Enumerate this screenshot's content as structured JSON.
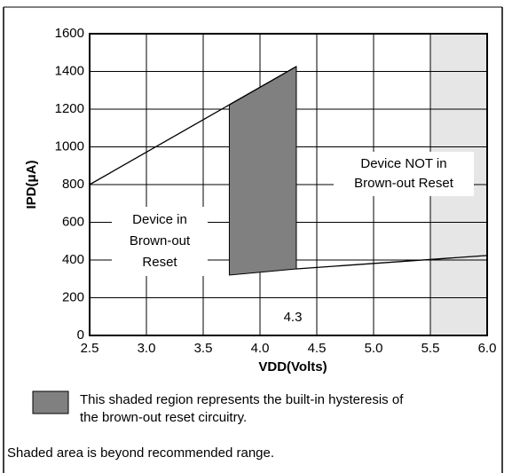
{
  "chart_data": {
    "type": "line",
    "xlabel": "VDD(Volts)",
    "ylabel": "IPD(μA)",
    "xlim": [
      2.5,
      6.0
    ],
    "ylim": [
      0,
      1600
    ],
    "xticks": [
      2.5,
      {
        "value": 3,
        "label": "3.0"
      },
      3.5,
      {
        "value": 4,
        "label": "4.0"
      },
      4.5,
      {
        "value": 5,
        "label": "5.0"
      },
      5.5,
      {
        "value": 6,
        "label": "6.0"
      }
    ],
    "yticks": [
      0,
      200,
      400,
      600,
      800,
      1000,
      1200,
      1400,
      1600
    ],
    "grid": true,
    "series": [
      {
        "color": "#000000",
        "x": [
          2.5,
          4.32
        ],
        "values": [
          800,
          1426
        ]
      },
      {
        "color": "#000000",
        "x": [
          4.32,
          6.0
        ],
        "values": [
          353,
          424
        ]
      }
    ],
    "hysteresis_region": {
      "color": "#808080",
      "x": [
        3.73,
        3.73,
        4.32,
        4.32
      ],
      "values": [
        320,
        1224,
        1426,
        353
      ]
    },
    "out_of_range_region": {
      "color": "#e6e6e6",
      "x": [
        5.5,
        6.0
      ]
    },
    "annotations": {
      "brown_out": [
        "Device in",
        "Brown-out",
        "Reset"
      ],
      "not_brown_out": [
        "Device NOT in",
        "Brown-out Reset"
      ],
      "threshold": "4.3"
    },
    "legend_text": [
      "This shaded region represents the built-in hysteresis of",
      "the brown-out reset circuitry."
    ],
    "note": "Shaded area is beyond recommended range."
  }
}
